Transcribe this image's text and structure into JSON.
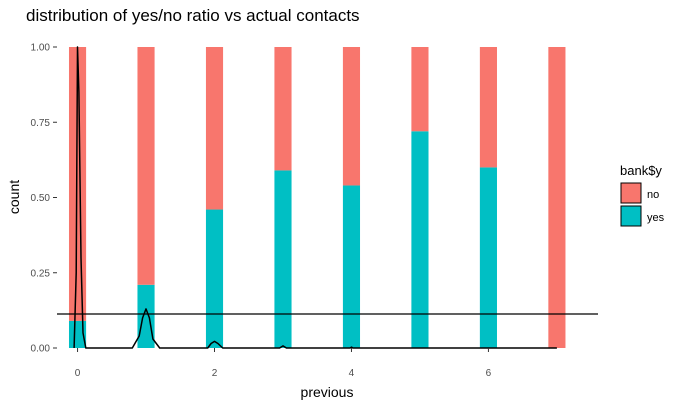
{
  "chart_data": {
    "type": "bar",
    "title": "distribution of yes/no ratio vs actual contacts",
    "xlabel": "previous",
    "ylabel": "count",
    "x_ticks": [
      "0",
      "2",
      "4",
      "6"
    ],
    "y_ticks": [
      "0.00",
      "0.25",
      "0.50",
      "0.75",
      "1.00"
    ],
    "x_tick_values": [
      0,
      2,
      4,
      6
    ],
    "y_tick_values": [
      0,
      0.25,
      0.5,
      0.75,
      1.0
    ],
    "xlim": [
      -0.3,
      7.6
    ],
    "ylim": [
      0,
      1.0
    ],
    "grid": false,
    "legend": {
      "title": "bank$y",
      "position": "right",
      "entries": [
        "no",
        "yes"
      ]
    },
    "colors": {
      "no": "#F8766D",
      "yes": "#00BFC4",
      "line": "#000000"
    },
    "stacked_fill": true,
    "x": [
      0,
      1,
      2,
      3,
      4,
      5,
      6,
      7
    ],
    "series": [
      {
        "name": "no",
        "values": [
          0.91,
          0.79,
          0.54,
          0.41,
          0.46,
          0.28,
          0.4,
          1.0
        ]
      },
      {
        "name": "yes",
        "values": [
          0.09,
          0.21,
          0.46,
          0.59,
          0.54,
          0.72,
          0.6,
          0.0
        ]
      }
    ],
    "hline": 0.113,
    "density_curve": [
      [
        -0.05,
        0.0
      ],
      [
        -0.02,
        0.25
      ],
      [
        0.0,
        1.0
      ],
      [
        0.02,
        0.85
      ],
      [
        0.05,
        0.3
      ],
      [
        0.08,
        0.05
      ],
      [
        0.12,
        0.0
      ],
      [
        0.8,
        0.0
      ],
      [
        0.9,
        0.04
      ],
      [
        0.95,
        0.1
      ],
      [
        1.0,
        0.13
      ],
      [
        1.05,
        0.1
      ],
      [
        1.1,
        0.03
      ],
      [
        1.2,
        0.0
      ],
      [
        1.9,
        0.0
      ],
      [
        1.95,
        0.015
      ],
      [
        2.0,
        0.022
      ],
      [
        2.05,
        0.015
      ],
      [
        2.12,
        0.0
      ],
      [
        2.95,
        0.0
      ],
      [
        3.0,
        0.007
      ],
      [
        3.05,
        0.0
      ],
      [
        3.98,
        0.0
      ],
      [
        4.0,
        0.003
      ],
      [
        4.02,
        0.0
      ],
      [
        7.0,
        0.0
      ]
    ]
  }
}
